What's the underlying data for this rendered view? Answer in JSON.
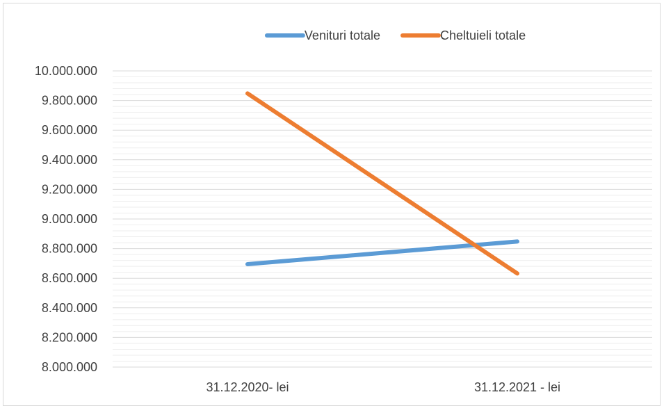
{
  "chart_data": {
    "type": "line",
    "title": "",
    "xlabel": "",
    "ylabel": "",
    "categories": [
      "31.12.2020- lei",
      "31.12.2021 - lei"
    ],
    "series": [
      {
        "name": "Venituri totale",
        "values": [
          8695000,
          8848000
        ],
        "color": "#5b9bd5"
      },
      {
        "name": "Cheltuieli totale",
        "values": [
          9848000,
          8632000
        ],
        "color": "#ed7d31"
      }
    ],
    "ylim": [
      8000000,
      10000000
    ],
    "y_ticks": [
      "8.000.000",
      "8.200.000",
      "8.400.000",
      "8.600.000",
      "8.800.000",
      "9.000.000",
      "9.200.000",
      "9.400.000",
      "9.600.000",
      "9.800.000",
      "10.000.000"
    ],
    "y_major_step": 200000,
    "y_minor_step": 40000,
    "grid": true,
    "legend_position": "top"
  }
}
